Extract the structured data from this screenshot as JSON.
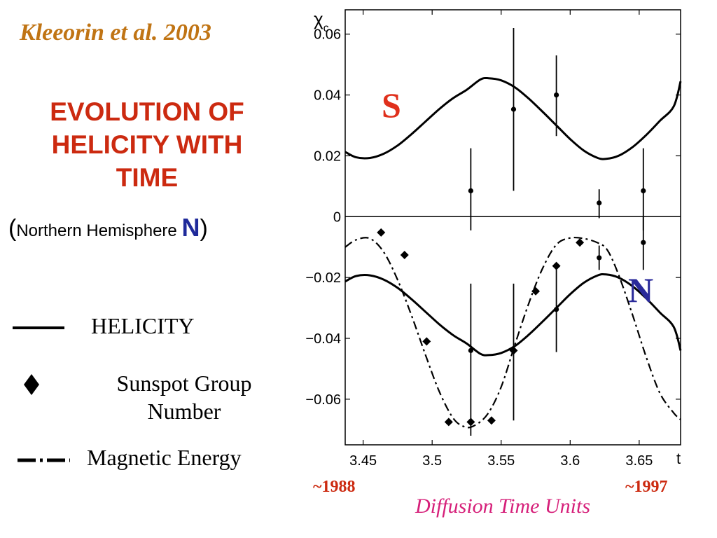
{
  "citation": "Kleeorin et al. 2003",
  "title_lines": [
    "EVOLUTION OF",
    "HELICITY WITH",
    "TIME"
  ],
  "subtitle": {
    "open_paren": "(",
    "text": "Northern Hemisphere ",
    "hemisphere_letter": "N",
    "close_paren": ")"
  },
  "legend": {
    "helicity": "HELICITY",
    "sunspot_line1": "Sunspot Group",
    "sunspot_line2": "Number",
    "magnetic": "Magnetic Energy"
  },
  "colors": {
    "citation": "#c07414",
    "title": "#cc2a10",
    "south": "#e0301c",
    "north": "#2a2a9a",
    "diffusion": "#d6207a",
    "years": "#cc2a10"
  },
  "chart_data": {
    "type": "line",
    "ylabel": "χ",
    "ylabel_subscript": "c",
    "xlabel": "t",
    "xlim": [
      3.437,
      3.68
    ],
    "ylim": [
      -0.075,
      0.068
    ],
    "xticks": [
      3.45,
      3.5,
      3.55,
      3.6,
      3.65
    ],
    "xtick_labels": [
      "3.45",
      "3.5",
      "3.55",
      "3.6",
      "3.65"
    ],
    "yticks": [
      -0.06,
      -0.04,
      -0.02,
      0,
      0.02,
      0.04,
      0.06
    ],
    "ytick_labels": [
      "−0.06",
      "−0.04",
      "−0.02",
      "0",
      "0.02",
      "0.04",
      "0.06"
    ],
    "zero_line": true,
    "grid": false,
    "hemisphere_labels": {
      "south": "S",
      "north": "N"
    },
    "year_labels": {
      "start": "~1988",
      "end": "~1997"
    },
    "x_unit_label": "Diffusion Time Units",
    "series": [
      {
        "name": "HELICITY",
        "kind": "solid",
        "x": [
          3.437,
          3.445,
          3.455,
          3.465,
          3.475,
          3.485,
          3.495,
          3.505,
          3.515,
          3.525,
          3.535,
          3.541,
          3.55,
          3.56,
          3.57,
          3.58,
          3.59,
          3.6,
          3.61,
          3.62,
          3.626,
          3.635,
          3.645,
          3.655,
          3.665,
          3.675,
          3.68
        ],
        "y": [
          0.0213,
          0.0195,
          0.0193,
          0.0207,
          0.0234,
          0.0271,
          0.0312,
          0.0353,
          0.0389,
          0.0417,
          0.0451,
          0.0455,
          0.0448,
          0.0425,
          0.0388,
          0.0345,
          0.03,
          0.0255,
          0.0217,
          0.0193,
          0.019,
          0.02,
          0.0228,
          0.0268,
          0.0315,
          0.0362,
          0.0445
        ]
      },
      {
        "name": "HELICITY",
        "kind": "solid",
        "x": [
          3.437,
          3.445,
          3.455,
          3.465,
          3.475,
          3.485,
          3.495,
          3.505,
          3.515,
          3.525,
          3.535,
          3.541,
          3.55,
          3.56,
          3.57,
          3.58,
          3.59,
          3.6,
          3.61,
          3.62,
          3.626,
          3.635,
          3.645,
          3.655,
          3.665,
          3.675,
          3.68
        ],
        "y": [
          -0.0213,
          -0.0195,
          -0.0193,
          -0.0207,
          -0.0234,
          -0.0271,
          -0.0312,
          -0.0353,
          -0.0389,
          -0.0417,
          -0.0451,
          -0.0455,
          -0.0448,
          -0.0425,
          -0.0388,
          -0.0345,
          -0.03,
          -0.0255,
          -0.0217,
          -0.0193,
          -0.019,
          -0.02,
          -0.0228,
          -0.0268,
          -0.0315,
          -0.0362,
          -0.044
        ]
      },
      {
        "name": "Magnetic Energy",
        "kind": "dashdot",
        "x": [
          3.437,
          3.445,
          3.455,
          3.465,
          3.475,
          3.485,
          3.495,
          3.505,
          3.515,
          3.523,
          3.53,
          3.54,
          3.55,
          3.56,
          3.57,
          3.58,
          3.59,
          3.6,
          3.61,
          3.62,
          3.627,
          3.635,
          3.645,
          3.655,
          3.665,
          3.675,
          3.68
        ],
        "y": [
          -0.01,
          -0.0076,
          -0.0072,
          -0.0117,
          -0.0208,
          -0.0324,
          -0.0452,
          -0.0573,
          -0.0661,
          -0.069,
          -0.0688,
          -0.065,
          -0.056,
          -0.042,
          -0.0285,
          -0.017,
          -0.0092,
          -0.007,
          -0.0072,
          -0.0086,
          -0.011,
          -0.019,
          -0.032,
          -0.046,
          -0.058,
          -0.0645,
          -0.0667
        ]
      },
      {
        "name": "Sunspot Group Number",
        "kind": "diamonds",
        "x": [
          3.463,
          3.48,
          3.496,
          3.512,
          3.528,
          3.543,
          3.559,
          3.575,
          3.59,
          3.607
        ],
        "y": [
          -0.0052,
          -0.0126,
          -0.041,
          -0.0675,
          -0.0675,
          -0.067,
          -0.044,
          -0.0245,
          -0.0162,
          -0.0085
        ]
      },
      {
        "kind": "errorbars",
        "x": [
          3.528,
          3.559,
          3.59,
          3.621,
          3.653,
          3.528,
          3.559,
          3.59,
          3.621,
          3.653
        ],
        "y": [
          0.0085,
          0.0353,
          0.04,
          0.0045,
          0.0085,
          -0.044,
          -0.044,
          -0.0305,
          -0.0135,
          -0.0085
        ],
        "ylo": [
          -0.0045,
          0.0085,
          0.0265,
          -0.0005,
          -0.0045,
          -0.072,
          -0.067,
          -0.0445,
          -0.0175,
          -0.0175
        ],
        "yhi": [
          0.0225,
          0.062,
          0.053,
          0.009,
          0.0225,
          -0.022,
          -0.022,
          -0.0165,
          -0.0095,
          0.0
        ]
      }
    ]
  }
}
